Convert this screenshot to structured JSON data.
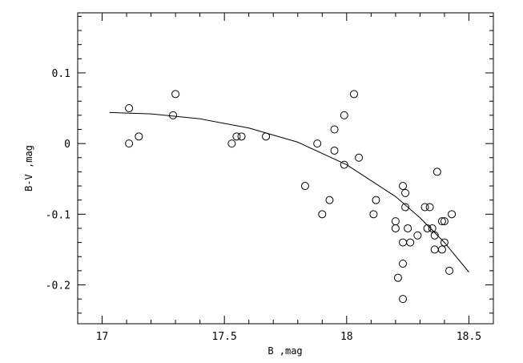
{
  "chart_data": {
    "type": "scatter",
    "title": "",
    "xlabel": "B ,mag",
    "ylabel": "B-V ,mag",
    "xlim": [
      16.9,
      18.6
    ],
    "ylim": [
      -0.255,
      0.185
    ],
    "x_ticks": [
      {
        "value": 17,
        "label": "17"
      },
      {
        "value": 17.5,
        "label": "17.5"
      },
      {
        "value": 18,
        "label": "18"
      },
      {
        "value": 18.5,
        "label": "18.5"
      }
    ],
    "y_ticks": [
      {
        "value": 0.1,
        "label": "0.1"
      },
      {
        "value": 0,
        "label": "0"
      },
      {
        "value": -0.1,
        "label": "-0.1"
      },
      {
        "value": -0.2,
        "label": "-0.2"
      }
    ],
    "x_minor_step": 0.1,
    "y_minor_step": 0.02,
    "grid": false,
    "legend": "none",
    "series": [
      {
        "type": "scatter",
        "marker": "open-circle",
        "color": "#000000",
        "points": [
          [
            17.11,
            0.05
          ],
          [
            17.11,
            0.0
          ],
          [
            17.15,
            0.01
          ],
          [
            17.29,
            0.04
          ],
          [
            17.3,
            0.07
          ],
          [
            17.53,
            0.0
          ],
          [
            17.55,
            0.01
          ],
          [
            17.57,
            0.01
          ],
          [
            17.67,
            0.01
          ],
          [
            17.83,
            -0.06
          ],
          [
            17.88,
            0.0
          ],
          [
            17.9,
            -0.1
          ],
          [
            17.93,
            -0.08
          ],
          [
            17.95,
            0.02
          ],
          [
            17.95,
            -0.01
          ],
          [
            17.99,
            0.04
          ],
          [
            17.99,
            -0.03
          ],
          [
            18.03,
            0.07
          ],
          [
            18.05,
            -0.02
          ],
          [
            18.11,
            -0.1
          ],
          [
            18.12,
            -0.08
          ],
          [
            18.2,
            -0.11
          ],
          [
            18.2,
            -0.12
          ],
          [
            18.21,
            -0.19
          ],
          [
            18.23,
            -0.06
          ],
          [
            18.23,
            -0.14
          ],
          [
            18.23,
            -0.17
          ],
          [
            18.23,
            -0.22
          ],
          [
            18.24,
            -0.07
          ],
          [
            18.24,
            -0.09
          ],
          [
            18.25,
            -0.12
          ],
          [
            18.26,
            -0.14
          ],
          [
            18.29,
            -0.13
          ],
          [
            18.32,
            -0.09
          ],
          [
            18.33,
            -0.12
          ],
          [
            18.34,
            -0.09
          ],
          [
            18.35,
            -0.12
          ],
          [
            18.36,
            -0.15
          ],
          [
            18.36,
            -0.13
          ],
          [
            18.37,
            -0.04
          ],
          [
            18.39,
            -0.11
          ],
          [
            18.39,
            -0.15
          ],
          [
            18.4,
            -0.11
          ],
          [
            18.4,
            -0.14
          ],
          [
            18.42,
            -0.18
          ],
          [
            18.43,
            -0.1
          ]
        ]
      },
      {
        "type": "line",
        "color": "#000000",
        "points": [
          [
            17.03,
            0.044
          ],
          [
            17.2,
            0.042
          ],
          [
            17.4,
            0.035
          ],
          [
            17.6,
            0.022
          ],
          [
            17.8,
            0.002
          ],
          [
            18.0,
            -0.03
          ],
          [
            18.2,
            -0.075
          ],
          [
            18.3,
            -0.105
          ],
          [
            18.4,
            -0.14
          ],
          [
            18.5,
            -0.182
          ]
        ]
      }
    ]
  }
}
